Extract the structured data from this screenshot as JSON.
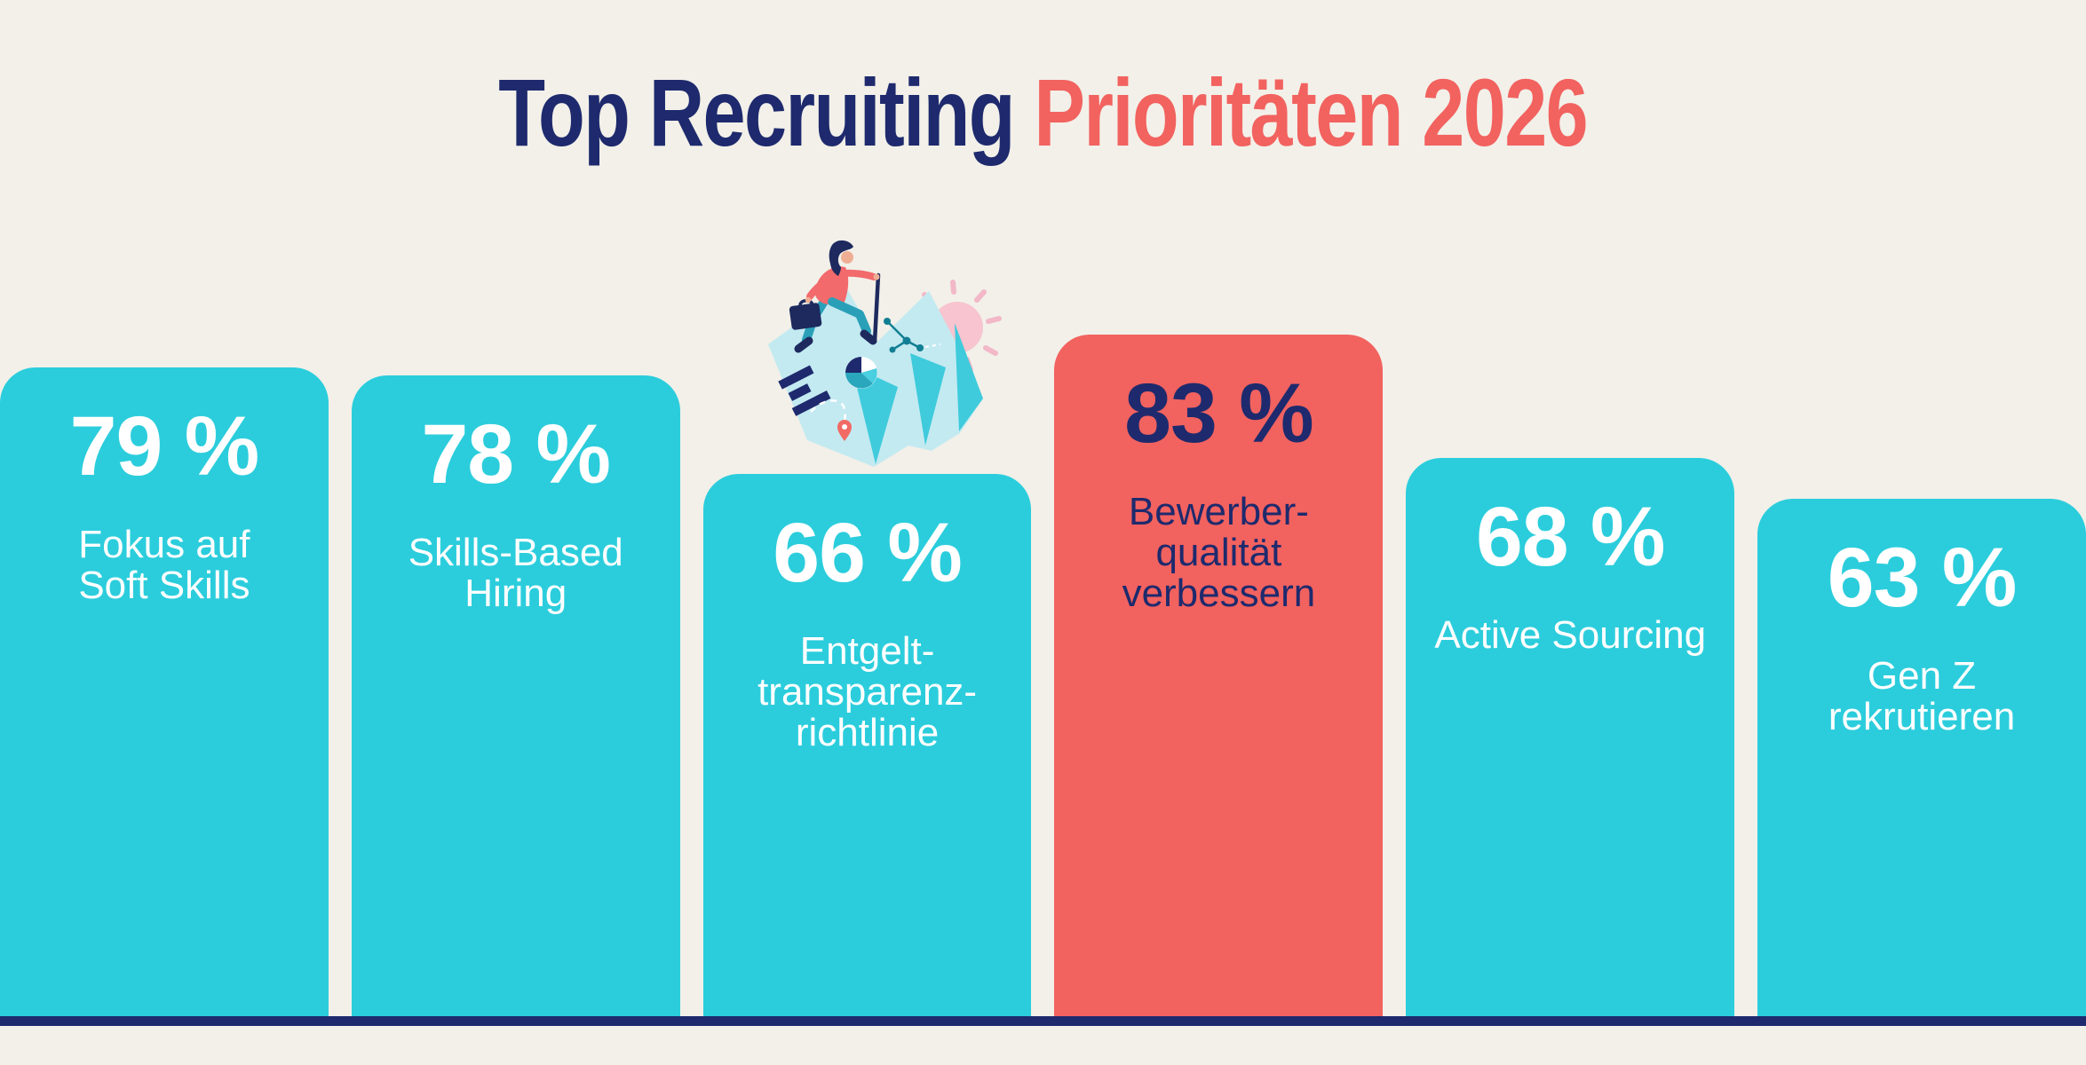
{
  "title": {
    "primary": "Top Recruiting",
    "accent": "Prioritäten 2026",
    "full": "Top Recruiting Prioritäten 2026"
  },
  "colors": {
    "background": "#F2F0E9",
    "bar": "#2BCDDC",
    "bar_highlight": "#F2625F",
    "text_on_bar": "#FFFFFF",
    "text_on_highlight": "#1E2A6D",
    "title_primary": "#1E2A6D",
    "title_accent": "#F2625F",
    "baseline": "#1E2A6D"
  },
  "chart_data": {
    "type": "bar",
    "title": "Top Recruiting Prioritäten 2026",
    "unit": "%",
    "orientation": "vertical",
    "categories": [
      "Fokus auf\nSoft Skills",
      "Skills-Based\nHiring",
      "Entgelt-\ntransparenz-\nrichtlinie",
      "Bewerber-\nqualität\nverbessern",
      "Active Sourcing",
      "Gen Z\nrekrutieren"
    ],
    "values": [
      79,
      78,
      66,
      83,
      68,
      63
    ],
    "value_labels": [
      "79 %",
      "78 %",
      "66 %",
      "83 %",
      "68 %",
      "63 %"
    ],
    "highlighted_index": 3,
    "highlighted_category": "Bewerber-\nqualität\nverbessern",
    "ylim": [
      0,
      100
    ],
    "grid": false,
    "legend": false
  },
  "illustration": {
    "description": "Hiker with briefcase and trekking pole climbing an accordion-folded map, pink sun behind",
    "icons": [
      "sun-icon",
      "folded-map-icon",
      "hiker-figure",
      "briefcase-icon",
      "trekking-pole-icon",
      "location-pin-icon",
      "network-graph-icon",
      "pie-chart-icon",
      "route-path-dashed",
      "bar-chart-marks"
    ]
  }
}
